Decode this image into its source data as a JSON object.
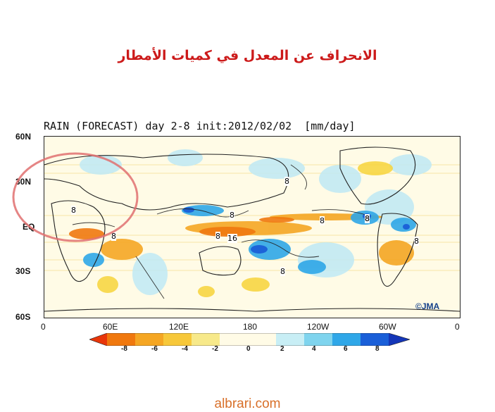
{
  "heading": "الانحراف عن المعدل في كميات الأمطار",
  "map": {
    "title": "RAIN (FORECAST) day 2-8 init:2012/02/02  [mm/day]",
    "lat_labels": [
      "60N",
      "30N",
      "EQ",
      "30S",
      "60S"
    ],
    "lon_labels": [
      "0",
      "60E",
      "120E",
      "180",
      "120W",
      "60W",
      "0"
    ],
    "contour_labels": [
      "8",
      "8",
      "8",
      "8",
      "8",
      "8",
      "8",
      "16",
      "8",
      "8",
      "8"
    ],
    "credit": "©JMA"
  },
  "colorbar": {
    "ticks": [
      "-8",
      "-6",
      "-4",
      "-2",
      "0",
      "2",
      "4",
      "6",
      "8"
    ],
    "colors": [
      "#e8360a",
      "#f0780e",
      "#f5a623",
      "#f7d43a",
      "#fff7b0",
      "#fffbe6",
      "#c8eef5",
      "#7fd4ee",
      "#2fa7e8",
      "#1a5fd8",
      "#1436b8"
    ]
  },
  "footer": "albrari.com"
}
